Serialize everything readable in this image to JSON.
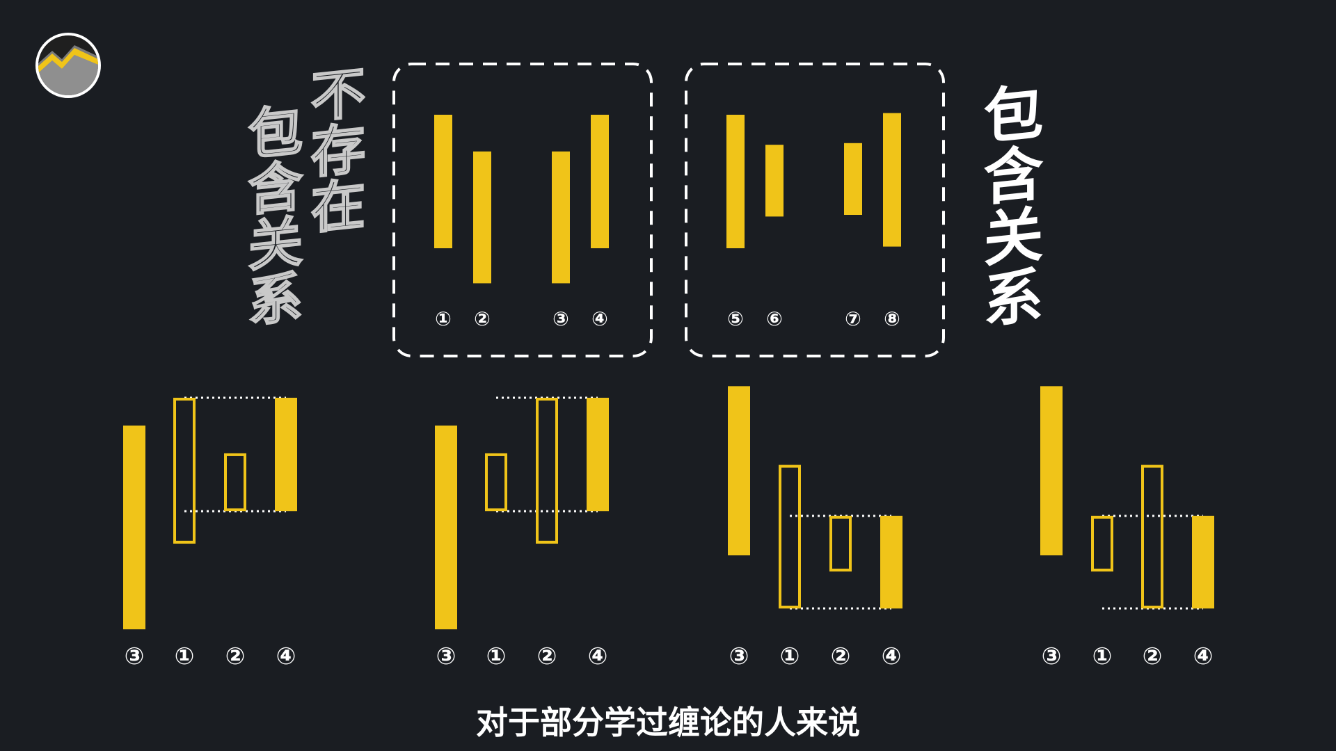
{
  "colors": {
    "background": "#1a1d22",
    "bar": "#f0c419",
    "white": "#ffffff",
    "outline_text": "#c9c9c9"
  },
  "labels": {
    "left_heading": "不存在包含关系",
    "right_heading": "包含关系",
    "subtitle": "对于部分学过缠论的人来说"
  },
  "logo": {
    "icon": "mountain-logo-icon"
  },
  "top_groups": [
    {
      "name": "no-containment",
      "bars": [
        {
          "label": "①",
          "high": 100,
          "low": 20
        },
        {
          "label": "②",
          "high": 78,
          "low": -1
        },
        {
          "label": "③",
          "high": 78,
          "low": -1
        },
        {
          "label": "④",
          "high": 100,
          "low": 20
        }
      ]
    },
    {
      "name": "containment",
      "bars": [
        {
          "label": "⑤",
          "high": 100,
          "low": 20
        },
        {
          "label": "⑥",
          "high": 82,
          "low": 39
        },
        {
          "label": "⑦",
          "high": 83,
          "low": 40
        },
        {
          "label": "⑧",
          "high": 101,
          "low": 21
        }
      ]
    }
  ],
  "bottom_panels": [
    {
      "bars": [
        {
          "label": "③",
          "high": 88,
          "low": 0,
          "style": "solid"
        },
        {
          "label": "①",
          "high": 100,
          "low": 37,
          "style": "hollow"
        },
        {
          "label": "②",
          "high": 76,
          "low": 51,
          "style": "hollow"
        },
        {
          "label": "④",
          "high": 100,
          "low": 51,
          "style": "solid"
        }
      ]
    },
    {
      "bars": [
        {
          "label": "③",
          "high": 88,
          "low": 0,
          "style": "solid"
        },
        {
          "label": "①",
          "high": 76,
          "low": 51,
          "style": "hollow"
        },
        {
          "label": "②",
          "high": 100,
          "low": 37,
          "style": "hollow"
        },
        {
          "label": "④",
          "high": 100,
          "low": 51,
          "style": "solid"
        }
      ]
    },
    {
      "bars": [
        {
          "label": "③",
          "high": 105,
          "low": 32,
          "style": "solid"
        },
        {
          "label": "①",
          "high": 71,
          "low": 9,
          "style": "hollow"
        },
        {
          "label": "②",
          "high": 49,
          "low": 25,
          "style": "hollow"
        },
        {
          "label": "④",
          "high": 49,
          "low": 9,
          "style": "solid"
        }
      ]
    },
    {
      "bars": [
        {
          "label": "③",
          "high": 105,
          "low": 32,
          "style": "solid"
        },
        {
          "label": "①",
          "high": 49,
          "low": 25,
          "style": "hollow"
        },
        {
          "label": "②",
          "high": 71,
          "low": 9,
          "style": "hollow"
        },
        {
          "label": "④",
          "high": 49,
          "low": 9,
          "style": "solid"
        }
      ]
    }
  ]
}
